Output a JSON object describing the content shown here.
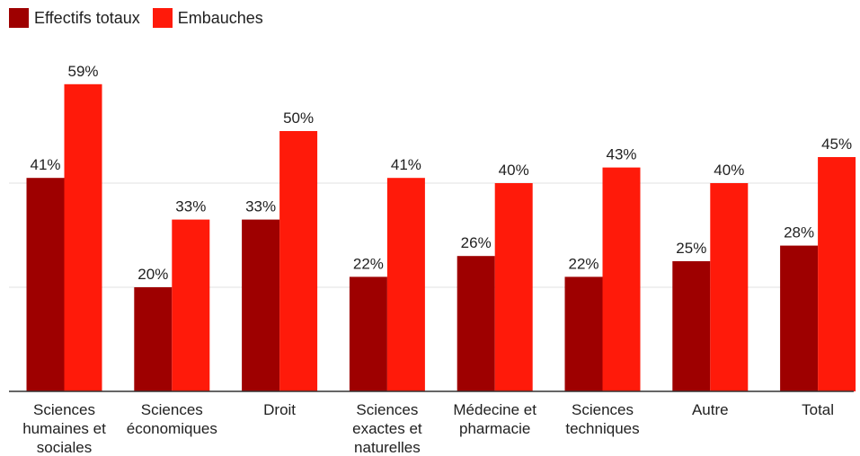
{
  "chart_data": {
    "type": "bar",
    "categories": [
      [
        "Sciences",
        "humaines et",
        "sociales"
      ],
      [
        "Sciences",
        "économiques"
      ],
      [
        "Droit"
      ],
      [
        "Sciences",
        "exactes et",
        "naturelles"
      ],
      [
        "Médecine et",
        "pharmacie"
      ],
      [
        "Sciences",
        "techniques"
      ],
      [
        "Autre"
      ],
      [
        "Total"
      ]
    ],
    "series": [
      {
        "name": "Effectifs totaux",
        "color": "#9e0000",
        "values": [
          41,
          20,
          33,
          22,
          26,
          22,
          25,
          28
        ],
        "labels": [
          "41%",
          "20%",
          "33%",
          "22%",
          "26%",
          "22%",
          "25%",
          "28%"
        ]
      },
      {
        "name": "Embauches",
        "color": "#ff1a0a",
        "values": [
          59,
          33,
          50,
          41,
          40,
          43,
          40,
          45
        ],
        "labels": [
          "59%",
          "33%",
          "50%",
          "41%",
          "40%",
          "43%",
          "40%",
          "45%"
        ]
      }
    ],
    "title": "",
    "xlabel": "",
    "ylabel": "",
    "ylim": [
      0,
      60
    ],
    "gridlines": [
      20,
      40
    ],
    "grid": true,
    "legend_position": "top-left"
  }
}
